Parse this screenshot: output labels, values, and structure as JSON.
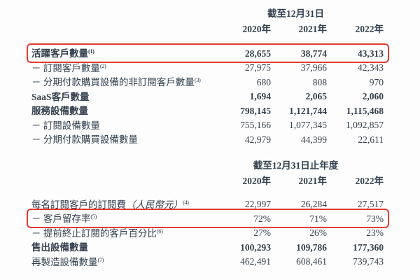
{
  "colors": {
    "text": "#34414e",
    "highlight_box": "#e23b31",
    "background": "#fdfdfd"
  },
  "section1": {
    "period_header": "截至12月31日",
    "years": [
      "2020年",
      "2021年",
      "2022年"
    ],
    "rows": [
      {
        "label": "活躍客戶數量",
        "sup": "(1)",
        "values": [
          "28,655",
          "38,774",
          "43,313"
        ]
      },
      {
        "label": "－ 訂閱客戶數量",
        "sup": "(2)",
        "values": [
          "27,975",
          "37,966",
          "42,343"
        ]
      },
      {
        "label": "－ 分期付款購買設備的非訂閱客戶數量",
        "sup": "(3)",
        "values": [
          "680",
          "808",
          "970"
        ]
      },
      {
        "label": "SaaS客戶數量",
        "sup": "",
        "values": [
          "1,694",
          "2,065",
          "2,060"
        ]
      },
      {
        "label": "服務設備數量",
        "sup": "",
        "values": [
          "798,145",
          "1,121,744",
          "1,115,468"
        ]
      },
      {
        "label": "－ 訂閱設備數量",
        "sup": "",
        "values": [
          "755,166",
          "1,077,345",
          "1,092,857"
        ]
      },
      {
        "label": "－ 分期付款購買設備數量",
        "sup": "",
        "values": [
          "42,979",
          "44,399",
          "22,611"
        ]
      }
    ]
  },
  "section2": {
    "period_header": "截至12月31日止年度",
    "years": [
      "2020年",
      "2021年",
      "2022年"
    ],
    "rows": [
      {
        "label": "每名訂閱客戶的訂閱費",
        "label_italic": "（人民幣元）",
        "sup": "(4)",
        "values": [
          "22,997",
          "26,284",
          "27,517"
        ]
      },
      {
        "label": "－ 客戶留存率",
        "label_italic": "",
        "sup": "(5)",
        "values": [
          "72%",
          "71%",
          "73%"
        ]
      },
      {
        "label": "－ 提前終止訂閱的客戶百分比",
        "label_italic": "",
        "sup": "(6)",
        "values": [
          "27%",
          "26%",
          "23%"
        ]
      },
      {
        "label": "售出設備數量",
        "label_italic": "",
        "sup": "",
        "values": [
          "100,293",
          "109,786",
          "177,360"
        ]
      },
      {
        "label": "再製造設備數量",
        "label_italic": "",
        "sup": "(7)",
        "values": [
          "462,491",
          "608,461",
          "739,743"
        ]
      }
    ]
  }
}
